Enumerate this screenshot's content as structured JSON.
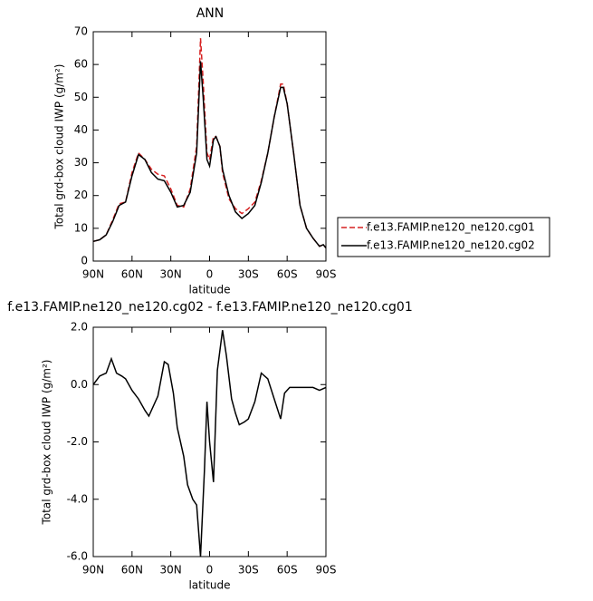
{
  "chart_data": [
    {
      "type": "line",
      "title": "ANN",
      "x_label": "latitude",
      "y_label": "Total grd-box cloud IWP (g/m²)",
      "xlim": [
        90,
        -90
      ],
      "xticks": [
        {
          "value": 90,
          "label": "90N"
        },
        {
          "value": 60,
          "label": "60N"
        },
        {
          "value": 30,
          "label": "30N"
        },
        0,
        {
          "value": -30,
          "label": "30S"
        },
        {
          "value": -60,
          "label": "60S"
        },
        {
          "value": -90,
          "label": "90S"
        }
      ],
      "ylim": [
        0,
        70
      ],
      "yticks": [
        0,
        10,
        20,
        30,
        40,
        50,
        60,
        70
      ],
      "legend": "right",
      "x": [
        90,
        85,
        80,
        75,
        70,
        65,
        60,
        55,
        50,
        45,
        40,
        35,
        30,
        25,
        20,
        15,
        10,
        7,
        5,
        2,
        0,
        -3,
        -5,
        -8,
        -10,
        -15,
        -20,
        -25,
        -30,
        -35,
        -40,
        -45,
        -50,
        -55,
        -57,
        -60,
        -65,
        -70,
        -75,
        -80,
        -85,
        -88,
        -90
      ],
      "series": [
        {
          "name": "f.e13.FAMIP.ne120_ne120.cg01",
          "color": "#d62020",
          "line_style": "dashed",
          "values": [
            6,
            6.5,
            8,
            12.5,
            17.5,
            18,
            27,
            33,
            31,
            28,
            26.5,
            26,
            22,
            17,
            16.5,
            22,
            35,
            68,
            55,
            33,
            31,
            38,
            38,
            35,
            27,
            19,
            16,
            14.5,
            16,
            18,
            24.5,
            33,
            44,
            54,
            54,
            48,
            33,
            17,
            10,
            7,
            4.5,
            5,
            4
          ]
        },
        {
          "name": "f.e13.FAMIP.ne120_ne120.cg02",
          "color": "#000000",
          "line_style": "solid",
          "values": [
            6,
            6.5,
            8,
            12,
            17,
            18,
            26,
            32.5,
            31,
            27,
            25,
            24.5,
            21,
            16.5,
            17,
            21,
            33,
            61,
            50,
            31,
            29,
            37,
            38,
            35,
            28,
            20,
            15,
            13,
            14.5,
            17,
            24,
            33,
            44,
            53,
            53,
            48,
            33,
            17,
            10,
            7,
            4.5,
            5,
            4
          ]
        }
      ]
    },
    {
      "type": "line",
      "title": "f.e13.FAMIP.ne120_ne120.cg02 - f.e13.FAMIP.ne120_ne120.cg01",
      "x_label": "latitude",
      "y_label": "Total grd-box cloud IWP (g/m²)",
      "xlim": [
        90,
        -90
      ],
      "xticks": [
        {
          "value": 90,
          "label": "90N"
        },
        {
          "value": 60,
          "label": "60N"
        },
        {
          "value": 30,
          "label": "30N"
        },
        0,
        {
          "value": -30,
          "label": "30S"
        },
        {
          "value": -60,
          "label": "60S"
        },
        {
          "value": -90,
          "label": "90S"
        }
      ],
      "ylim": [
        -6,
        2
      ],
      "yticks": [
        {
          "value": -6,
          "label": "-6.0"
        },
        {
          "value": -4,
          "label": "-4.0"
        },
        {
          "value": -2,
          "label": "-2.0"
        },
        {
          "value": 0,
          "label": "0.0"
        },
        {
          "value": 2,
          "label": "2.0"
        }
      ],
      "color": "#000000",
      "x": [
        90,
        85,
        80,
        76,
        72,
        68,
        65,
        60,
        55,
        50,
        47,
        40,
        35,
        32,
        28,
        25,
        20,
        17,
        13,
        10,
        7,
        4,
        2,
        0,
        -3,
        -6,
        -10,
        -13,
        -17,
        -20,
        -23,
        -27,
        -30,
        -35,
        -40,
        -45,
        -50,
        -55,
        -58,
        -62,
        -70,
        -80,
        -85,
        -90
      ],
      "values": [
        0.0,
        0.3,
        0.4,
        0.9,
        0.4,
        0.3,
        0.2,
        -0.2,
        -0.5,
        -0.9,
        -1.1,
        -0.4,
        0.8,
        0.7,
        -0.3,
        -1.5,
        -2.5,
        -3.5,
        -4.0,
        -4.2,
        -6.0,
        -3.0,
        -0.6,
        -2.0,
        -3.4,
        0.5,
        1.9,
        1.0,
        -0.5,
        -1.0,
        -1.4,
        -1.3,
        -1.2,
        -0.6,
        0.4,
        0.2,
        -0.5,
        -1.2,
        -0.3,
        -0.1,
        -0.1,
        -0.1,
        -0.2,
        -0.1
      ]
    }
  ]
}
